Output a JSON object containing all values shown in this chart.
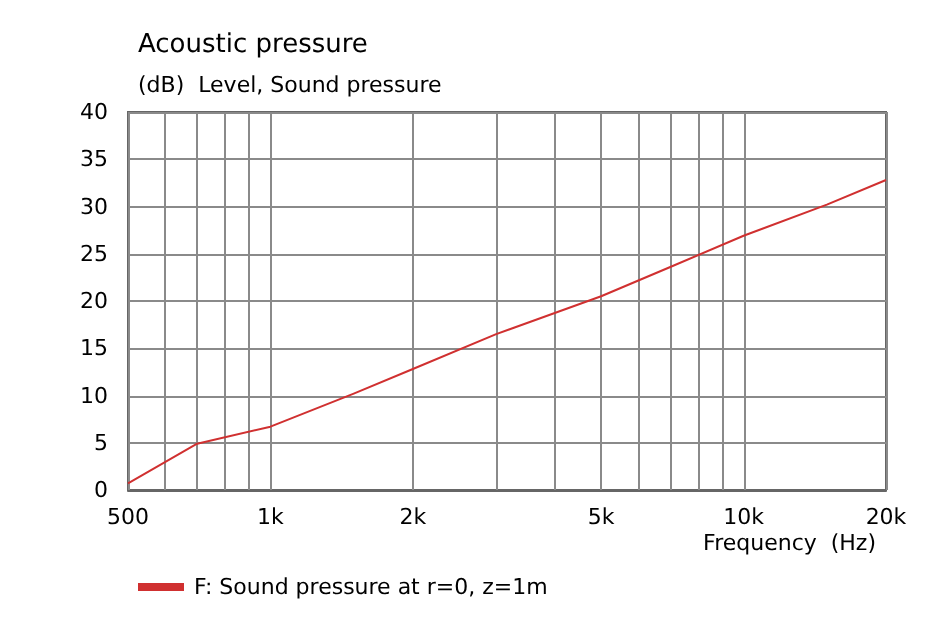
{
  "chart_data": {
    "type": "line",
    "title": "Acoustic pressure",
    "ylabel": "(dB)  Level, Sound pressure",
    "xlabel": "Frequency  (Hz)",
    "log": "x",
    "grid": true,
    "legend": "bottom",
    "marker": "none",
    "line_style": "solid",
    "xlim": [
      500,
      20000
    ],
    "ylim": [
      0,
      40
    ],
    "xticks": [
      {
        "value": 500,
        "label": "500"
      },
      {
        "value": 600,
        "label": null
      },
      {
        "value": 700,
        "label": null
      },
      {
        "value": 800,
        "label": null
      },
      {
        "value": 900,
        "label": null
      },
      {
        "value": 1000,
        "label": "1k"
      },
      {
        "value": 2000,
        "label": "2k"
      },
      {
        "value": 3000,
        "label": null
      },
      {
        "value": 4000,
        "label": null
      },
      {
        "value": 5000,
        "label": "5k"
      },
      {
        "value": 6000,
        "label": null
      },
      {
        "value": 7000,
        "label": null
      },
      {
        "value": 8000,
        "label": null
      },
      {
        "value": 9000,
        "label": null
      },
      {
        "value": 10000,
        "label": "10k"
      },
      {
        "value": 20000,
        "label": "20k"
      }
    ],
    "yticks": [
      0,
      5,
      10,
      15,
      20,
      25,
      30,
      35,
      40
    ],
    "x": [
      500,
      700,
      1000,
      1500,
      2000,
      3000,
      5000,
      7000,
      10000,
      15000,
      20000
    ],
    "series": [
      {
        "name": "F: Sound pressure at r=0, z=1m",
        "color": "#d03030",
        "values": [
          0.7,
          4.9,
          6.7,
          10.2,
          12.8,
          16.5,
          20.5,
          23.6,
          26.9,
          30.2,
          32.8
        ]
      }
    ]
  }
}
